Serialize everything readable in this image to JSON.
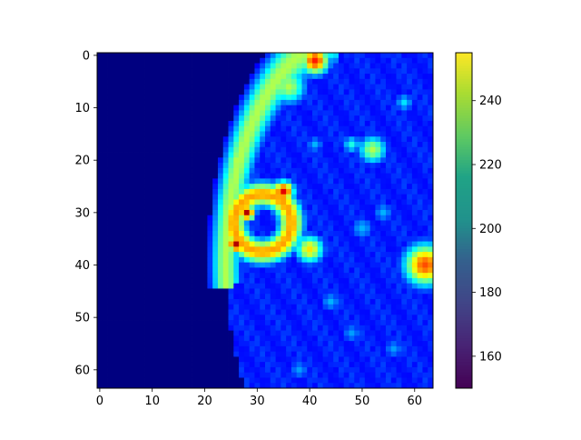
{
  "chart_data": {
    "type": "heatmap",
    "title": "",
    "xlabel": "",
    "ylabel": "",
    "grid": false,
    "image_shape": [
      64,
      64
    ],
    "xlim": [
      -0.5,
      63.5
    ],
    "ylim": [
      63.5,
      -0.5
    ],
    "x_ticks": [
      {
        "value": 0,
        "label": "0"
      },
      {
        "value": 10,
        "label": "10"
      },
      {
        "value": 20,
        "label": "20"
      },
      {
        "value": 30,
        "label": "30"
      },
      {
        "value": 40,
        "label": "40"
      },
      {
        "value": 50,
        "label": "50"
      },
      {
        "value": 60,
        "label": "60"
      }
    ],
    "y_ticks": [
      {
        "value": 0,
        "label": "0"
      },
      {
        "value": 10,
        "label": "10"
      },
      {
        "value": 20,
        "label": "20"
      },
      {
        "value": 30,
        "label": "30"
      },
      {
        "value": 40,
        "label": "40"
      },
      {
        "value": 50,
        "label": "50"
      },
      {
        "value": 60,
        "label": "60"
      }
    ],
    "image_colormap": "jet",
    "background_value": 0.0,
    "features": [
      {
        "kind": "arc",
        "cx": 48,
        "cy": 40,
        "rx": 24,
        "ry": 44,
        "from_deg": 170,
        "to_deg": 267,
        "value": 0.55,
        "width": 2.0
      },
      {
        "kind": "blob",
        "x": 41,
        "y": 1,
        "r": 2.0,
        "value": 0.85
      },
      {
        "kind": "blob",
        "x": 36,
        "y": 6,
        "r": 2.5,
        "value": 0.55
      },
      {
        "kind": "blob",
        "x": 30,
        "y": 12,
        "r": 2.0,
        "value": 0.5
      },
      {
        "kind": "blob",
        "x": 26,
        "y": 20,
        "r": 1.5,
        "value": 0.55
      },
      {
        "kind": "ring",
        "x": 31,
        "y": 32,
        "r": 5.5,
        "width": 1.8,
        "value": 0.72
      },
      {
        "kind": "blob",
        "x": 35,
        "y": 26,
        "r": 1.5,
        "value": 0.9
      },
      {
        "kind": "blob",
        "x": 28,
        "y": 30,
        "r": 1.2,
        "value": 0.95
      },
      {
        "kind": "blob",
        "x": 26,
        "y": 36,
        "r": 1.3,
        "value": 0.95
      },
      {
        "kind": "blob",
        "x": 40,
        "y": 37,
        "r": 2.0,
        "value": 0.65
      },
      {
        "kind": "blob",
        "x": 62,
        "y": 40,
        "r": 3.0,
        "value": 0.8
      },
      {
        "kind": "blob",
        "x": 52,
        "y": 18,
        "r": 2.0,
        "value": 0.55
      },
      {
        "kind": "blob",
        "x": 48,
        "y": 17,
        "r": 1.3,
        "value": 0.4
      },
      {
        "kind": "blob",
        "x": 58,
        "y": 9,
        "r": 1.3,
        "value": 0.35
      },
      {
        "kind": "blob",
        "x": 41,
        "y": 17,
        "r": 1.3,
        "value": 0.3
      },
      {
        "kind": "blob",
        "x": 50,
        "y": 33,
        "r": 1.8,
        "value": 0.3
      },
      {
        "kind": "blob",
        "x": 54,
        "y": 30,
        "r": 1.5,
        "value": 0.3
      },
      {
        "kind": "blob",
        "x": 44,
        "y": 47,
        "r": 1.5,
        "value": 0.3
      },
      {
        "kind": "blob",
        "x": 48,
        "y": 53,
        "r": 1.5,
        "value": 0.28
      },
      {
        "kind": "blob",
        "x": 38,
        "y": 60,
        "r": 1.5,
        "value": 0.28
      },
      {
        "kind": "blob",
        "x": 56,
        "y": 56,
        "r": 1.5,
        "value": 0.28
      }
    ],
    "colorbar": {
      "colormap": "viridis",
      "range": [
        150,
        255
      ],
      "ticks": [
        {
          "value": 160,
          "label": "160"
        },
        {
          "value": 180,
          "label": "180"
        },
        {
          "value": 200,
          "label": "200"
        },
        {
          "value": 220,
          "label": "220"
        },
        {
          "value": 240,
          "label": "240"
        }
      ]
    }
  }
}
